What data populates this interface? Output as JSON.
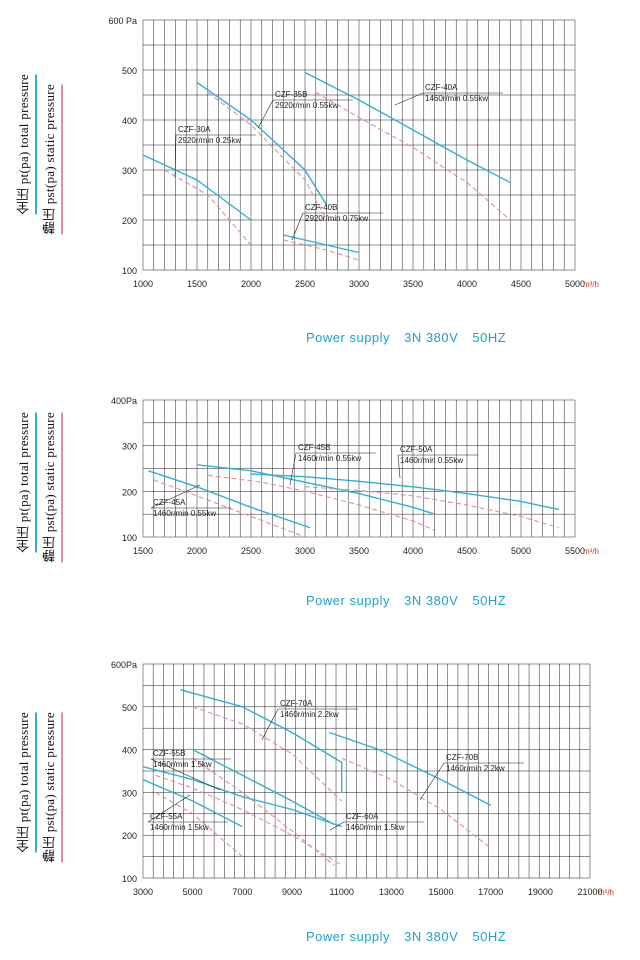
{
  "footer": {
    "power_label": "Power supply",
    "voltage": "3N 380V",
    "freq": "50HZ"
  },
  "side_labels": {
    "total": "全压 pt(pa) total pressure",
    "static": "静压 pst(pa) static pressure"
  },
  "colors": {
    "total": "#2fb0d8",
    "static": "#e28ca6",
    "grid": "#222222",
    "footer": "#1aa3d2"
  },
  "chart_data": [
    {
      "type": "line",
      "xlabel": "m³/h",
      "ylabel": "Pa",
      "xticks": [
        1000,
        1500,
        2000,
        2500,
        3000,
        3500,
        4000,
        4500,
        5000
      ],
      "xtick_labels": [
        "1000",
        "1500",
        "2000",
        "2500",
        "3000",
        "3500",
        "4000",
        "4500",
        "5000"
      ],
      "yticks": [
        100,
        200,
        300,
        400,
        500,
        600
      ],
      "ytick_labels": [
        "100",
        "200",
        "300",
        "400",
        "500",
        "600 Pa"
      ],
      "xlim": [
        1000,
        5000
      ],
      "ylim": [
        100,
        600
      ],
      "grid": true,
      "series": [
        {
          "name": "CZF-30A",
          "info": "2920r/min 0.25kw",
          "total": [
            [
              1000,
              330
            ],
            [
              1500,
              280
            ],
            [
              2000,
              200
            ]
          ],
          "static": [
            [
              1200,
              300
            ],
            [
              1600,
              250
            ],
            [
              2000,
              150
            ]
          ]
        },
        {
          "name": "CZF-35B",
          "info": "2920r/min 0.55kw",
          "total": [
            [
              1500,
              475
            ],
            [
              2000,
              400
            ],
            [
              2500,
              300
            ],
            [
              2700,
              230
            ]
          ],
          "static": [
            [
              1600,
              455
            ],
            [
              2000,
              390
            ],
            [
              2500,
              280
            ],
            [
              2700,
              200
            ]
          ]
        },
        {
          "name": "CZF-40A",
          "info": "1460r/min 0.55kw",
          "total": [
            [
              2300,
              170
            ],
            [
              2700,
              150
            ],
            [
              3000,
              135
            ]
          ],
          "static": [
            [
              2300,
              160
            ],
            [
              2700,
              140
            ],
            [
              3000,
              120
            ]
          ]
        },
        {
          "name": "CZF-40B",
          "info": "2920r/min 0.75kw",
          "total": [
            [
              2500,
              495
            ],
            [
              3000,
              440
            ],
            [
              3500,
              380
            ],
            [
              4000,
              320
            ],
            [
              4400,
              275
            ]
          ],
          "static": [
            [
              2600,
              455
            ],
            [
              3000,
              405
            ],
            [
              3500,
              345
            ],
            [
              4000,
              275
            ],
            [
              4400,
              200
            ]
          ]
        }
      ],
      "annotations": [
        {
          "name": "CZF-30A",
          "info": "2920r/min 0.25kw"
        },
        {
          "name": "CZF-35B",
          "info": "2920r/min 0.55kw"
        },
        {
          "name": "CZF-40B",
          "info": "2920r/min 0.75kw"
        },
        {
          "name": "CZF-40A",
          "info": "1460r/min 0.55kw"
        }
      ]
    },
    {
      "type": "line",
      "xlabel": "m³/h",
      "ylabel": "Pa",
      "xticks": [
        1500,
        2000,
        2500,
        3000,
        3500,
        4000,
        4500,
        5000,
        5500
      ],
      "xtick_labels": [
        "1500",
        "2000",
        "2500",
        "3000",
        "3500",
        "4000",
        "4500",
        "5000",
        "5500"
      ],
      "yticks": [
        100,
        200,
        300,
        400
      ],
      "ytick_labels": [
        "100",
        "200",
        "300",
        "400Pa"
      ],
      "xlim": [
        1500,
        5500
      ],
      "ylim": [
        100,
        400
      ],
      "grid": true,
      "series": [
        {
          "name": "CZF-45A",
          "info": "1460r/min 0.55kw",
          "total": [
            [
              1550,
              245
            ],
            [
              2000,
              210
            ],
            [
              2500,
              165
            ],
            [
              3050,
              120
            ]
          ],
          "static": [
            [
              1600,
              225
            ],
            [
              2000,
              190
            ],
            [
              2500,
              145
            ],
            [
              3000,
              100
            ]
          ]
        },
        {
          "name": "CZF-45B",
          "info": "1460r/min 0.55kw",
          "total": [
            [
              2000,
              258
            ],
            [
              2500,
              245
            ],
            [
              3000,
              220
            ],
            [
              3500,
              195
            ],
            [
              4000,
              165
            ],
            [
              4200,
              150
            ]
          ],
          "static": [
            [
              2100,
              235
            ],
            [
              2600,
              220
            ],
            [
              3000,
              200
            ],
            [
              3500,
              170
            ],
            [
              4000,
              135
            ],
            [
              4200,
              115
            ]
          ]
        },
        {
          "name": "CZF-50A",
          "info": "1460r/min 0.55kw",
          "total": [
            [
              2500,
              238
            ],
            [
              3000,
              232
            ],
            [
              3500,
              222
            ],
            [
              4000,
              210
            ],
            [
              4500,
              195
            ],
            [
              5000,
              178
            ],
            [
              5350,
              160
            ]
          ],
          "static": [
            [
              3000,
              210
            ],
            [
              3500,
              202
            ],
            [
              4000,
              190
            ],
            [
              4500,
              170
            ],
            [
              5000,
              145
            ],
            [
              5350,
              120
            ]
          ]
        }
      ],
      "annotations": [
        {
          "name": "CZF-45B",
          "info": "1460r/min 0.55kw"
        },
        {
          "name": "CZF-50A",
          "info": "1460r/min 0.55kw"
        },
        {
          "name": "CZF-45A",
          "info": "1460r/min 0.55kw"
        }
      ]
    },
    {
      "type": "line",
      "xlabel": "m³/h",
      "ylabel": "Pa",
      "xticks": [
        3000,
        5000,
        7000,
        9000,
        11000,
        13000,
        15000,
        17000,
        19000,
        21000
      ],
      "xtick_labels": [
        "3000",
        "5000",
        "7000",
        "9000",
        "11000",
        "13000",
        "15000",
        "17000",
        "19000",
        "21000"
      ],
      "yticks": [
        100,
        200,
        300,
        400,
        500,
        600
      ],
      "ytick_labels": [
        "100",
        "200",
        "300",
        "400",
        "500",
        "600Pa"
      ],
      "xlim": [
        3000,
        21000
      ],
      "ylim": [
        100,
        600
      ],
      "grid": true,
      "series": [
        {
          "name": "CZF-55A",
          "info": "1460r/min 1.5kw",
          "total": [
            [
              3000,
              330
            ],
            [
              5000,
              280
            ],
            [
              7000,
              220
            ]
          ],
          "static": [
            [
              3500,
              300
            ],
            [
              5000,
              250
            ],
            [
              7000,
              150
            ]
          ]
        },
        {
          "name": "CZF-55B",
          "info": "1460r/min 1.5kw",
          "total": [
            [
              3000,
              360
            ],
            [
              5000,
              330
            ],
            [
              7000,
              290
            ],
            [
              9000,
              260
            ],
            [
              11000,
              220
            ]
          ],
          "static": [
            [
              3500,
              340
            ],
            [
              5000,
              310
            ],
            [
              7000,
              260
            ],
            [
              9000,
              200
            ],
            [
              11000,
              130
            ]
          ]
        },
        {
          "name": "CZF-60A",
          "info": "1460r/min 1.5kw",
          "total": [
            [
              5000,
              400
            ],
            [
              7000,
              340
            ],
            [
              9000,
              280
            ],
            [
              10700,
              225
            ]
          ],
          "static": [
            [
              5000,
              380
            ],
            [
              7000,
              300
            ],
            [
              9000,
              210
            ],
            [
              10700,
              130
            ]
          ]
        },
        {
          "name": "CZF-70A",
          "info": "1460r/min 2.2kw",
          "total": [
            [
              4500,
              540
            ],
            [
              7000,
              500
            ],
            [
              9000,
              440
            ],
            [
              11000,
              370
            ],
            [
              11000,
              300
            ]
          ],
          "static": [
            [
              5000,
              500
            ],
            [
              7000,
              460
            ],
            [
              9000,
              390
            ],
            [
              11000,
              280
            ]
          ]
        },
        {
          "name": "CZF-70B",
          "info": "1460r/min 2.2kw",
          "total": [
            [
              10500,
              440
            ],
            [
              12500,
              400
            ],
            [
              15000,
              330
            ],
            [
              17000,
              270
            ]
          ],
          "static": [
            [
              11000,
              380
            ],
            [
              13000,
              330
            ],
            [
              15000,
              260
            ],
            [
              17000,
              170
            ]
          ]
        }
      ],
      "annotations": [
        {
          "name": "CZF-70A",
          "info": "1460r/min 2.2kw"
        },
        {
          "name": "CZF-55B",
          "info": "1460r/min 1.5kw"
        },
        {
          "name": "CZF-70B",
          "info": "1460r/min 2.2kw"
        },
        {
          "name": "CZF-55A",
          "info": "1460r/min 1.5kw"
        },
        {
          "name": "CZF-60A",
          "info": "1460r/min 1.5kw"
        }
      ]
    }
  ]
}
